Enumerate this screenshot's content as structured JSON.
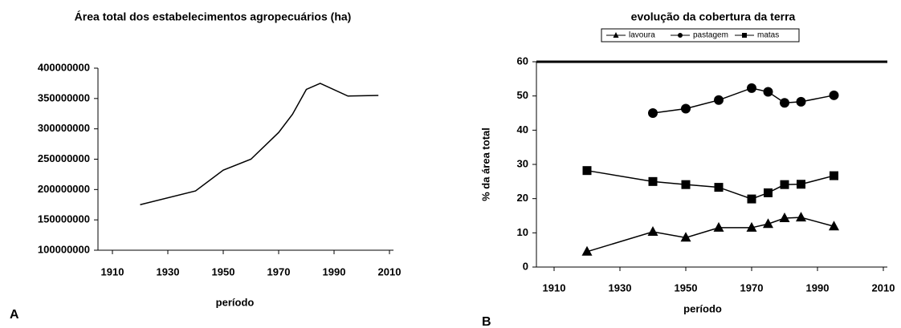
{
  "chart_data": [
    {
      "type": "line",
      "title": "Área total dos estabelecimentos agropecuários (ha)",
      "x_label": "período",
      "panel_label": "A",
      "x": [
        1920,
        1940,
        1950,
        1960,
        1970,
        1975,
        1980,
        1985,
        1995,
        2006
      ],
      "values": [
        175000000,
        197700000,
        232000000,
        250000000,
        294000000,
        324000000,
        365000000,
        375000000,
        354000000,
        355000000
      ],
      "color": "#000000",
      "xlim": [
        1910,
        2010
      ],
      "xticks": [
        1910,
        1930,
        1950,
        1970,
        1990,
        2010
      ],
      "ylim": [
        100000000,
        400000000
      ],
      "yticks": [
        100000000,
        150000000,
        200000000,
        250000000,
        300000000,
        350000000,
        400000000
      ],
      "grid": false
    },
    {
      "type": "line",
      "title": "evolução da cobertura da terra",
      "x_label": "período",
      "y_label": "% da área total",
      "panel_label": "B",
      "legend": "top",
      "x": [
        1920,
        1940,
        1950,
        1960,
        1970,
        1975,
        1980,
        1985,
        1995
      ],
      "series": [
        {
          "name": "lavoura",
          "color": "#000000",
          "marker": "triangle",
          "values": [
            4.5,
            10.3,
            8.6,
            11.5,
            11.5,
            12.6,
            14.3,
            14.5,
            11.9
          ]
        },
        {
          "name": "pastagem",
          "color": "#000000",
          "marker": "circle",
          "values": [
            null,
            45,
            46.3,
            48.8,
            52.3,
            51.2,
            48,
            48.3,
            50.2
          ]
        },
        {
          "name": "matas",
          "color": "#000000",
          "marker": "square",
          "values": [
            28.2,
            25,
            24.1,
            23.3,
            19.9,
            21.7,
            24.1,
            24.2,
            26.7
          ]
        }
      ],
      "xlim": [
        1910,
        2010
      ],
      "xticks": [
        1910,
        1930,
        1950,
        1970,
        1990,
        2010
      ],
      "ylim": [
        0,
        60
      ],
      "yticks": [
        0,
        10,
        20,
        30,
        40,
        50,
        60
      ],
      "grid": false
    }
  ]
}
